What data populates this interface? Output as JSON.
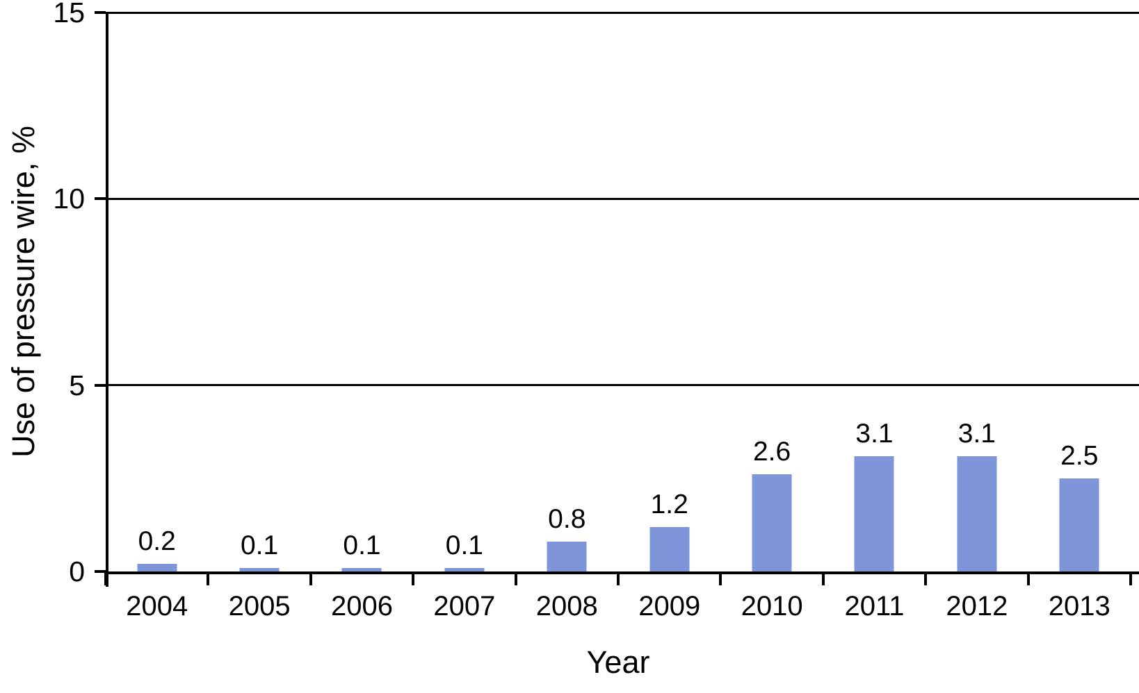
{
  "chart_data": {
    "type": "bar",
    "xlabel": "Year",
    "ylabel": "Use of pressure wire, %",
    "categories": [
      "2004",
      "2005",
      "2006",
      "2007",
      "2008",
      "2009",
      "2010",
      "2011",
      "2012",
      "2013"
    ],
    "values": [
      0.2,
      0.1,
      0.1,
      0.1,
      0.8,
      1.2,
      2.6,
      3.1,
      3.1,
      2.5
    ],
    "bar_labels": [
      "0.2",
      "0.1",
      "0.1",
      "0.1",
      "0.8",
      "1.2",
      "2.6",
      "3.1",
      "3.1",
      "2.5"
    ],
    "ylim": [
      0,
      15
    ],
    "yticks": [
      0,
      5,
      10,
      15
    ],
    "grid": "horizontal-on",
    "legend": "none",
    "bar_color": "#7E95DA",
    "axis_color": "#000000",
    "text_color": "#000000",
    "background_color": "#FFFFFF"
  }
}
